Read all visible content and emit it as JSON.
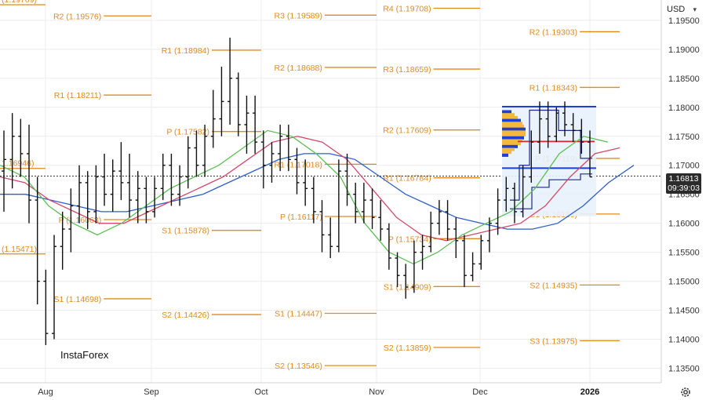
{
  "currency_selector": "USD",
  "current_price": {
    "price": "1.16813",
    "countdown": "09:39:03"
  },
  "logo": "InstaForex",
  "colors": {
    "candles": "#111111",
    "level": "#e08a1e",
    "green_ma": "#5cbf55",
    "red_ma": "#d24a6a",
    "blue_ma": "#2e5fc9",
    "profile": "#1e3fd6",
    "profile_fill": "#f2b93b",
    "profile_red": "#d62828"
  },
  "chart_data": {
    "type": "candlestick",
    "symbol": "EUR/USD",
    "ylim": [
      1.1325,
      1.1985
    ],
    "y_ticks": [
      "1.13500",
      "1.14000",
      "1.14500",
      "1.15000",
      "1.15500",
      "1.16000",
      "1.16500",
      "1.17000",
      "1.17500",
      "1.18000",
      "1.18500",
      "1.19000",
      "1.19500"
    ],
    "x_ticks": [
      "Aug",
      "Sep",
      "Oct",
      "Nov",
      "Dec",
      "2026"
    ],
    "levels": [
      {
        "label": "R2 (1.19576)",
        "value": 1.19576,
        "period": "Aug"
      },
      {
        "label": "R1 (1.18211)",
        "value": 1.18211,
        "period": "Aug"
      },
      {
        "label": "P (1.16063)",
        "value": 1.16063,
        "period": "Aug"
      },
      {
        "label": "S1 (1.14698)",
        "value": 1.14698,
        "period": "Aug"
      },
      {
        "label": "R1 (1.18984)",
        "value": 1.18984,
        "period": "Sep"
      },
      {
        "label": "P (1.17582)",
        "value": 1.17582,
        "period": "Sep"
      },
      {
        "label": "S1 (1.15878)",
        "value": 1.15878,
        "period": "Sep"
      },
      {
        "label": "S2 (1.14426)",
        "value": 1.14426,
        "period": "Sep"
      },
      {
        "label": "R3 (1.19589)",
        "value": 1.19589,
        "period": "Oct"
      },
      {
        "label": "R2 (1.18688)",
        "value": 1.18688,
        "period": "Oct"
      },
      {
        "label": "R1 (1.17018)",
        "value": 1.17018,
        "period": "Oct"
      },
      {
        "label": "P (1.16117)",
        "value": 1.16117,
        "period": "Oct"
      },
      {
        "label": "S1 (1.14447)",
        "value": 1.14447,
        "period": "Oct"
      },
      {
        "label": "S2 (1.13546)",
        "value": 1.13546,
        "period": "Oct"
      },
      {
        "label": "R4 (1.19708)",
        "value": 1.19708,
        "period": "Nov"
      },
      {
        "label": "R3 (1.18659)",
        "value": 1.18659,
        "period": "Nov"
      },
      {
        "label": "R2 (1.17609)",
        "value": 1.17609,
        "period": "Nov"
      },
      {
        "label": "R1 (1.16784)",
        "value": 1.16784,
        "period": "Nov"
      },
      {
        "label": "P (1.15734)",
        "value": 1.15734,
        "period": "Nov"
      },
      {
        "label": "S1 (1.14909)",
        "value": 1.14909,
        "period": "Nov"
      },
      {
        "label": "S2 (1.13859)",
        "value": 1.13859,
        "period": "Nov"
      },
      {
        "label": "R2 (1.19303)",
        "value": 1.19303,
        "period": "Dec"
      },
      {
        "label": "R1 (1.18343)",
        "value": 1.18343,
        "period": "Dec"
      },
      {
        "label": "P (1.17119)",
        "value": 1.17119,
        "period": "Dec"
      },
      {
        "label": "S1 (1.16159)",
        "value": 1.16159,
        "period": "Dec"
      },
      {
        "label": "S2 (1.14935)",
        "value": 1.14935,
        "period": "Dec"
      },
      {
        "label": "S3 (1.13975)",
        "value": 1.13975,
        "period": "Dec"
      },
      {
        "label": "(1.19769)",
        "value": 1.19769,
        "period": "Jul"
      },
      {
        "label": "1.16946)",
        "value": 1.16946,
        "period": "Jul"
      },
      {
        "label": "(1.15471)",
        "value": 1.15471,
        "period": "Jul"
      }
    ],
    "candles": [
      {
        "o": 1.169,
        "h": 1.176,
        "l": 1.162,
        "c": 1.171
      },
      {
        "o": 1.171,
        "h": 1.179,
        "l": 1.166,
        "c": 1.175
      },
      {
        "o": 1.175,
        "h": 1.178,
        "l": 1.168,
        "c": 1.172
      },
      {
        "o": 1.172,
        "h": 1.177,
        "l": 1.16,
        "c": 1.164
      },
      {
        "o": 1.164,
        "h": 1.168,
        "l": 1.146,
        "c": 1.15
      },
      {
        "o": 1.15,
        "h": 1.152,
        "l": 1.139,
        "c": 1.141
      },
      {
        "o": 1.141,
        "h": 1.158,
        "l": 1.14,
        "c": 1.156
      },
      {
        "o": 1.156,
        "h": 1.162,
        "l": 1.152,
        "c": 1.159
      },
      {
        "o": 1.159,
        "h": 1.166,
        "l": 1.155,
        "c": 1.163
      },
      {
        "o": 1.163,
        "h": 1.17,
        "l": 1.16,
        "c": 1.167
      },
      {
        "o": 1.167,
        "h": 1.169,
        "l": 1.159,
        "c": 1.162
      },
      {
        "o": 1.162,
        "h": 1.17,
        "l": 1.16,
        "c": 1.168
      },
      {
        "o": 1.168,
        "h": 1.172,
        "l": 1.163,
        "c": 1.165
      },
      {
        "o": 1.165,
        "h": 1.171,
        "l": 1.162,
        "c": 1.169
      },
      {
        "o": 1.169,
        "h": 1.174,
        "l": 1.164,
        "c": 1.167
      },
      {
        "o": 1.167,
        "h": 1.172,
        "l": 1.161,
        "c": 1.164
      },
      {
        "o": 1.164,
        "h": 1.169,
        "l": 1.16,
        "c": 1.166
      },
      {
        "o": 1.166,
        "h": 1.168,
        "l": 1.16,
        "c": 1.162
      },
      {
        "o": 1.162,
        "h": 1.168,
        "l": 1.161,
        "c": 1.166
      },
      {
        "o": 1.166,
        "h": 1.172,
        "l": 1.164,
        "c": 1.17
      },
      {
        "o": 1.17,
        "h": 1.172,
        "l": 1.163,
        "c": 1.165
      },
      {
        "o": 1.165,
        "h": 1.17,
        "l": 1.163,
        "c": 1.168
      },
      {
        "o": 1.168,
        "h": 1.175,
        "l": 1.166,
        "c": 1.173
      },
      {
        "o": 1.173,
        "h": 1.176,
        "l": 1.168,
        "c": 1.17
      },
      {
        "o": 1.17,
        "h": 1.177,
        "l": 1.168,
        "c": 1.175
      },
      {
        "o": 1.175,
        "h": 1.183,
        "l": 1.173,
        "c": 1.178
      },
      {
        "o": 1.178,
        "h": 1.187,
        "l": 1.175,
        "c": 1.181
      },
      {
        "o": 1.181,
        "h": 1.192,
        "l": 1.177,
        "c": 1.185
      },
      {
        "o": 1.185,
        "h": 1.186,
        "l": 1.175,
        "c": 1.177
      },
      {
        "o": 1.177,
        "h": 1.182,
        "l": 1.172,
        "c": 1.179
      },
      {
        "o": 1.179,
        "h": 1.182,
        "l": 1.172,
        "c": 1.174
      },
      {
        "o": 1.174,
        "h": 1.176,
        "l": 1.166,
        "c": 1.17
      },
      {
        "o": 1.17,
        "h": 1.174,
        "l": 1.167,
        "c": 1.172
      },
      {
        "o": 1.172,
        "h": 1.177,
        "l": 1.169,
        "c": 1.175
      },
      {
        "o": 1.175,
        "h": 1.177,
        "l": 1.169,
        "c": 1.171
      },
      {
        "o": 1.171,
        "h": 1.173,
        "l": 1.165,
        "c": 1.167
      },
      {
        "o": 1.167,
        "h": 1.171,
        "l": 1.163,
        "c": 1.166
      },
      {
        "o": 1.166,
        "h": 1.168,
        "l": 1.16,
        "c": 1.162
      },
      {
        "o": 1.162,
        "h": 1.164,
        "l": 1.155,
        "c": 1.158
      },
      {
        "o": 1.158,
        "h": 1.161,
        "l": 1.154,
        "c": 1.156
      },
      {
        "o": 1.156,
        "h": 1.171,
        "l": 1.155,
        "c": 1.169
      },
      {
        "o": 1.169,
        "h": 1.172,
        "l": 1.163,
        "c": 1.165
      },
      {
        "o": 1.165,
        "h": 1.167,
        "l": 1.16,
        "c": 1.162
      },
      {
        "o": 1.162,
        "h": 1.167,
        "l": 1.16,
        "c": 1.164
      },
      {
        "o": 1.164,
        "h": 1.166,
        "l": 1.159,
        "c": 1.161
      },
      {
        "o": 1.161,
        "h": 1.164,
        "l": 1.157,
        "c": 1.159
      },
      {
        "o": 1.159,
        "h": 1.16,
        "l": 1.152,
        "c": 1.154
      },
      {
        "o": 1.154,
        "h": 1.155,
        "l": 1.149,
        "c": 1.151
      },
      {
        "o": 1.151,
        "h": 1.153,
        "l": 1.147,
        "c": 1.149
      },
      {
        "o": 1.149,
        "h": 1.157,
        "l": 1.148,
        "c": 1.155
      },
      {
        "o": 1.155,
        "h": 1.158,
        "l": 1.152,
        "c": 1.156
      },
      {
        "o": 1.156,
        "h": 1.162,
        "l": 1.155,
        "c": 1.16
      },
      {
        "o": 1.16,
        "h": 1.164,
        "l": 1.158,
        "c": 1.162
      },
      {
        "o": 1.162,
        "h": 1.164,
        "l": 1.157,
        "c": 1.159
      },
      {
        "o": 1.159,
        "h": 1.161,
        "l": 1.154,
        "c": 1.157
      },
      {
        "o": 1.157,
        "h": 1.158,
        "l": 1.149,
        "c": 1.151
      },
      {
        "o": 1.151,
        "h": 1.155,
        "l": 1.15,
        "c": 1.153
      },
      {
        "o": 1.153,
        "h": 1.158,
        "l": 1.152,
        "c": 1.157
      },
      {
        "o": 1.157,
        "h": 1.161,
        "l": 1.155,
        "c": 1.16
      },
      {
        "o": 1.16,
        "h": 1.166,
        "l": 1.158,
        "c": 1.164
      },
      {
        "o": 1.164,
        "h": 1.168,
        "l": 1.162,
        "c": 1.166
      },
      {
        "o": 1.166,
        "h": 1.167,
        "l": 1.16,
        "c": 1.162
      },
      {
        "o": 1.162,
        "h": 1.17,
        "l": 1.161,
        "c": 1.168
      },
      {
        "o": 1.168,
        "h": 1.176,
        "l": 1.167,
        "c": 1.174
      },
      {
        "o": 1.174,
        "h": 1.181,
        "l": 1.172,
        "c": 1.178
      },
      {
        "o": 1.178,
        "h": 1.181,
        "l": 1.173,
        "c": 1.175
      },
      {
        "o": 1.175,
        "h": 1.18,
        "l": 1.174,
        "c": 1.179
      },
      {
        "o": 1.179,
        "h": 1.181,
        "l": 1.175,
        "c": 1.177
      },
      {
        "o": 1.177,
        "h": 1.179,
        "l": 1.174,
        "c": 1.176
      },
      {
        "o": 1.176,
        "h": 1.178,
        "l": 1.172,
        "c": 1.174
      },
      {
        "o": 1.174,
        "h": 1.176,
        "l": 1.168,
        "c": 1.168
      }
    ],
    "ma_green": [
      1.17,
      1.168,
      1.163,
      1.16,
      1.158,
      1.16,
      1.163,
      1.166,
      1.168,
      1.17,
      1.173,
      1.176,
      1.175,
      1.172,
      1.168,
      1.16,
      1.155,
      1.153,
      1.155,
      1.158,
      1.16,
      1.162,
      1.166,
      1.172,
      1.175,
      1.174
    ],
    "ma_red": [
      1.168,
      1.167,
      1.164,
      1.162,
      1.16,
      1.16,
      1.162,
      1.164,
      1.166,
      1.168,
      1.171,
      1.174,
      1.175,
      1.174,
      1.171,
      1.166,
      1.161,
      1.158,
      1.157,
      1.158,
      1.159,
      1.16,
      1.163,
      1.168,
      1.172,
      1.173
    ],
    "ma_blue": [
      1.165,
      1.165,
      1.164,
      1.163,
      1.162,
      1.162,
      1.163,
      1.164,
      1.165,
      1.167,
      1.169,
      1.171,
      1.172,
      1.172,
      1.171,
      1.168,
      1.165,
      1.163,
      1.161,
      1.16,
      1.159,
      1.159,
      1.16,
      1.163,
      1.167,
      1.17
    ]
  }
}
